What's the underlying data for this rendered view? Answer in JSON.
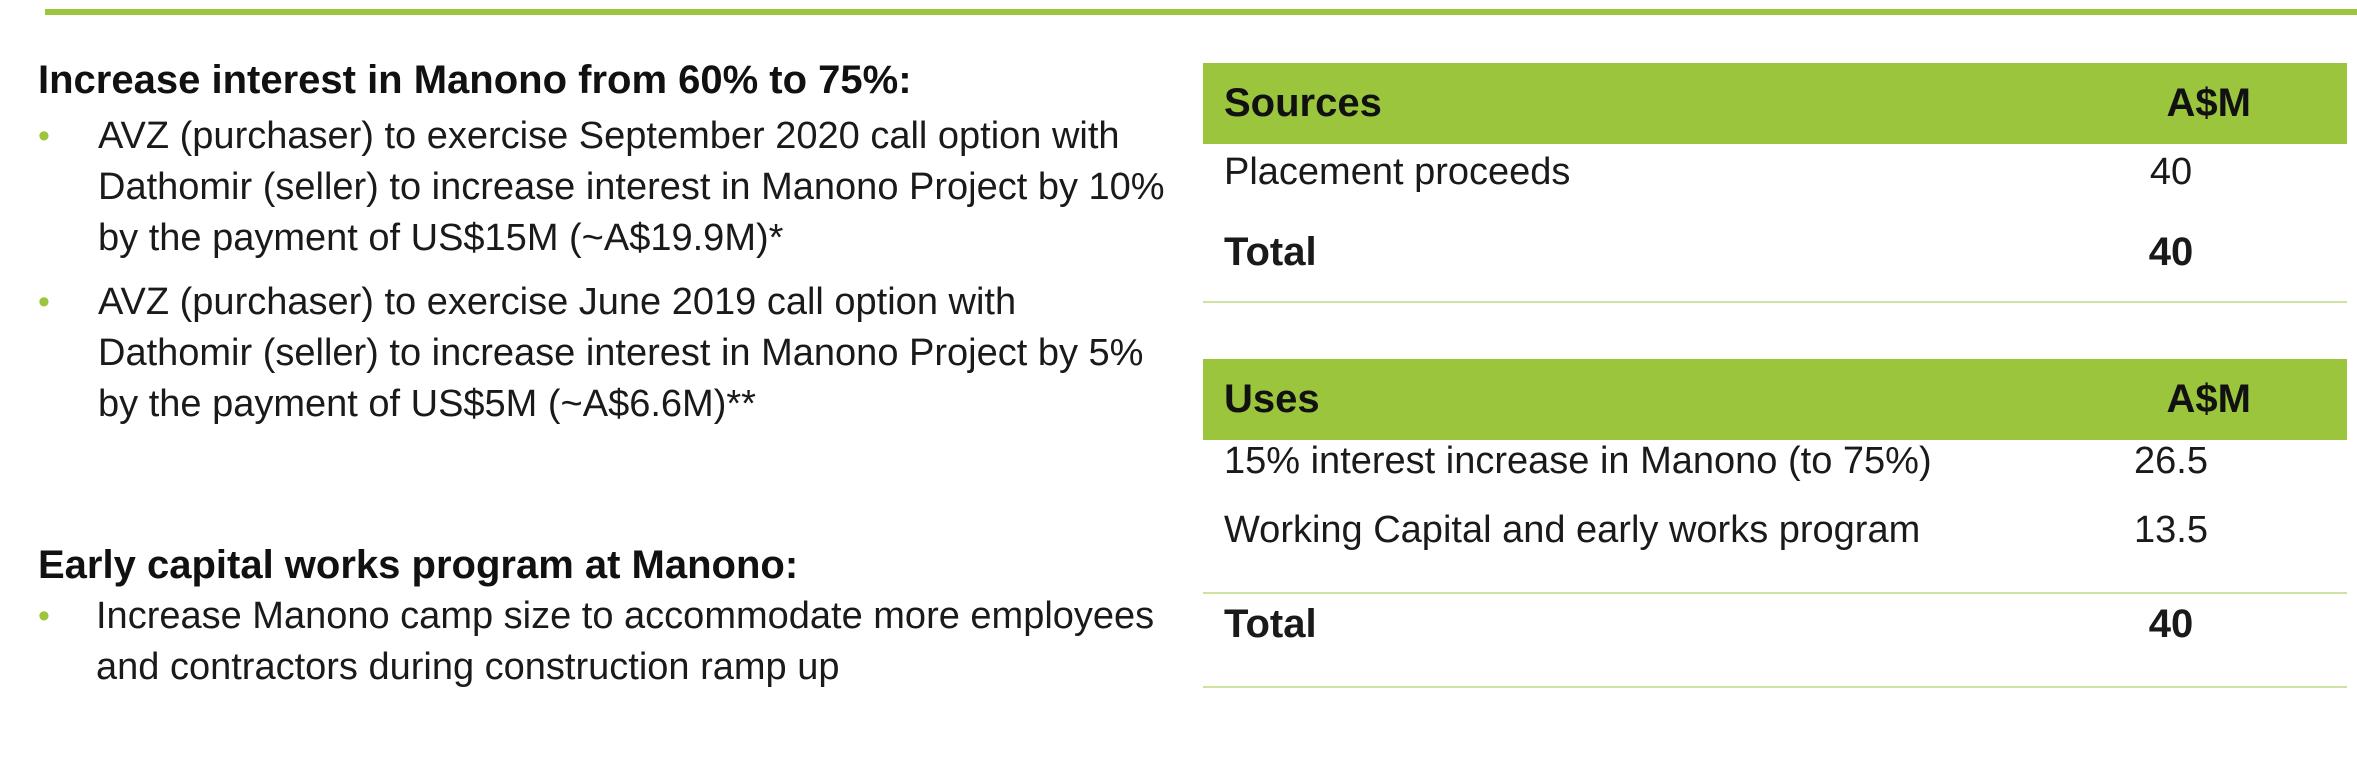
{
  "left": {
    "section1": {
      "heading": "Increase interest in Manono from 60% to 75%:",
      "bullets": [
        "AVZ (purchaser) to exercise September 2020 call option with Dathomir (seller) to increase interest in Manono Project by 10% by the payment of US$15M (~A$19.9M)*",
        "AVZ (purchaser) to exercise June 2019 call option with Dathomir (seller) to increase interest in Manono Project by 5% by the payment of US$5M (~A$6.6M)**"
      ]
    },
    "section2": {
      "heading": "Early capital works program at Manono:",
      "bullets": [
        "Increase Manono camp size to accommodate more employees and contractors during construction ramp up"
      ]
    },
    "bullet_glyph": "•"
  },
  "sources_table": {
    "header_label": "Sources",
    "header_unit": "A$M",
    "rows": [
      {
        "label": "Placement proceeds",
        "value": "40"
      }
    ],
    "total": {
      "label": "Total",
      "value": "40"
    }
  },
  "uses_table": {
    "header_label": "Uses",
    "header_unit": "A$M",
    "rows": [
      {
        "label": "15% interest increase in Manono (to 75%)",
        "value": "26.5"
      },
      {
        "label": "Working Capital and early works program",
        "value": "13.5"
      }
    ],
    "total": {
      "label": "Total",
      "value": "40"
    }
  },
  "colors": {
    "accent": "#9bc53d",
    "rule": "#cfe3a0",
    "text": "#1a1a1a"
  }
}
